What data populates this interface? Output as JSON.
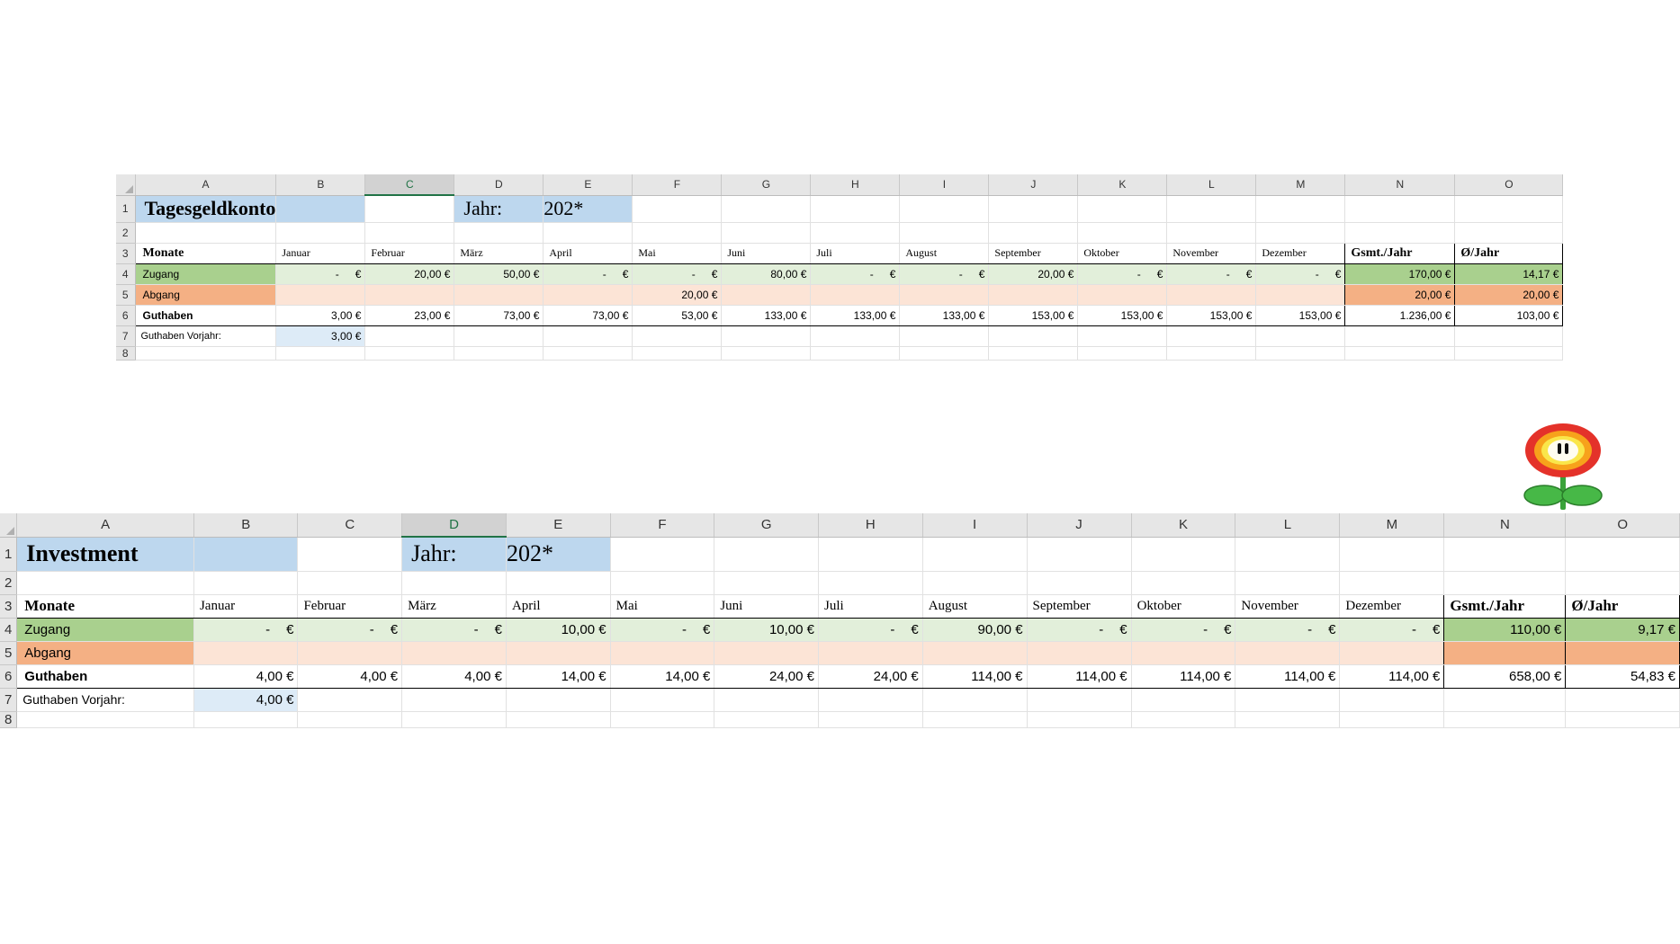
{
  "columns": [
    "A",
    "B",
    "C",
    "D",
    "E",
    "F",
    "G",
    "H",
    "I",
    "J",
    "K",
    "L",
    "M",
    "N",
    "O"
  ],
  "rows": [
    "1",
    "2",
    "3",
    "4",
    "5",
    "6",
    "7",
    "8"
  ],
  "months": [
    "Januar",
    "Februar",
    "März",
    "April",
    "Mai",
    "Juni",
    "Juli",
    "August",
    "September",
    "Oktober",
    "November",
    "Dezember"
  ],
  "headers": {
    "monate": "Monate",
    "total": "Gsmt./Jahr",
    "avg": "Ø/Jahr",
    "year_label": "Jahr:",
    "year_value": "202*"
  },
  "row_labels": {
    "zugang": "Zugang",
    "abgang": "Abgang",
    "guthaben": "Guthaben",
    "vorjahr": "Guthaben Vorjahr:"
  },
  "dash": "-",
  "euro": "€",
  "sheet1": {
    "title": "Tagesgeldkonto",
    "zugang": [
      "-",
      "20,00 €",
      "50,00 €",
      "-",
      "-",
      "80,00 €",
      "-",
      "-",
      "20,00 €",
      "-",
      "-",
      "-"
    ],
    "abgang": [
      "",
      "",
      "",
      "",
      "20,00 €",
      "",
      "",
      "",
      "",
      "",
      "",
      ""
    ],
    "guthaben": [
      "3,00 €",
      "23,00 €",
      "73,00 €",
      "73,00 €",
      "53,00 €",
      "133,00 €",
      "133,00 €",
      "133,00 €",
      "153,00 €",
      "153,00 €",
      "153,00 €",
      "153,00 €"
    ],
    "zugang_total": "170,00 €",
    "zugang_avg": "14,17 €",
    "abgang_total": "20,00 €",
    "abgang_avg": "20,00 €",
    "guthaben_total": "1.236,00 €",
    "guthaben_avg": "103,00 €",
    "vorjahr": "3,00 €"
  },
  "sheet2": {
    "title": "Investment",
    "zugang": [
      "-",
      "-",
      "-",
      "10,00 €",
      "-",
      "10,00 €",
      "-",
      "90,00 €",
      "-",
      "-",
      "-",
      "-"
    ],
    "abgang": [
      "",
      "",
      "",
      "",
      "",
      "",
      "",
      "",
      "",
      "",
      "",
      ""
    ],
    "guthaben": [
      "4,00 €",
      "4,00 €",
      "4,00 €",
      "14,00 €",
      "14,00 €",
      "24,00 €",
      "24,00 €",
      "114,00 €",
      "114,00 €",
      "114,00 €",
      "114,00 €",
      "114,00 €"
    ],
    "zugang_total": "110,00 €",
    "zugang_avg": "9,17 €",
    "abgang_total": "",
    "abgang_avg": "",
    "guthaben_total": "658,00 €",
    "guthaben_avg": "54,83 €",
    "vorjahr": "4,00 €"
  },
  "colors": {
    "blue": "#bdd7ee",
    "green_dark": "#a9d08e",
    "green_light": "#e2efda",
    "orange_dark": "#f4b084",
    "orange_light": "#fce4d6"
  },
  "icon": "fire-flower-icon"
}
